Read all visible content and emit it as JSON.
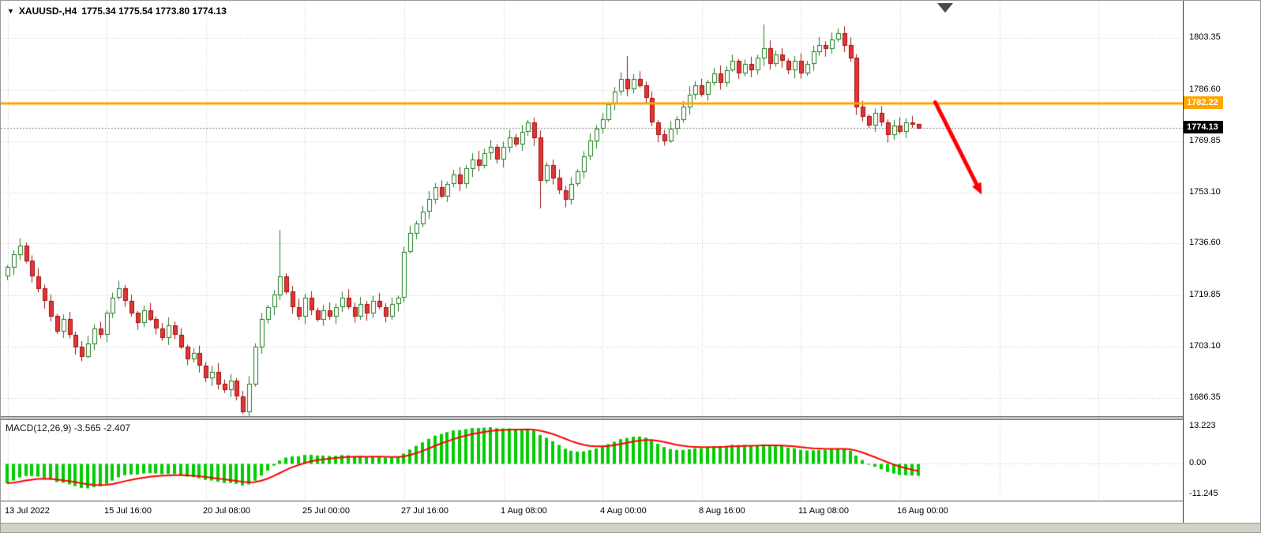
{
  "header": {
    "dropdown_icon": "▼",
    "symbol": "XAUUSD-,H4",
    "ohlc": "1775.34 1775.54 1773.80 1774.13"
  },
  "colors": {
    "background": "#ffffff",
    "grid": "#c6c6c6",
    "bull_border": "#1e7d1e",
    "bull_fill": "#ffffff",
    "bear_border": "#a01010",
    "bear_fill": "#e23535",
    "hline": "#ffa500",
    "hline_tag_bg": "#ffa500",
    "price_tag_bg": "#000000",
    "current_price_line": "#8a8a8a",
    "macd_hist": "#00cd00",
    "macd_signal": "#ff0000",
    "arrow": "#ff0000"
  },
  "chart_data": {
    "type": "candlestick",
    "symbol": "XAUUSD-",
    "timeframe": "H4",
    "title": "XAUUSD-,H4 1775.34 1775.54 1773.80 1774.13",
    "grid": "dotted",
    "price_range": {
      "min": 1680.5,
      "max": 1815.5
    },
    "y_axis": {
      "items": [
        {
          "value": 1803.35,
          "label": "1803.35"
        },
        {
          "value": 1786.6,
          "label": "1786.60"
        },
        {
          "value": 1769.85,
          "label": "1769.85"
        },
        {
          "value": 1753.1,
          "label": "1753.10"
        },
        {
          "value": 1736.6,
          "label": "1736.60"
        },
        {
          "value": 1719.85,
          "label": "1719.85"
        },
        {
          "value": 1703.1,
          "label": "1703.10"
        },
        {
          "value": 1686.35,
          "label": "1686.35"
        }
      ]
    },
    "x_labels": [
      {
        "bar": 0,
        "label": "13 Jul 2022"
      },
      {
        "bar": 16,
        "label": "15 Jul 16:00"
      },
      {
        "bar": 32,
        "label": "20 Jul 08:00"
      },
      {
        "bar": 48,
        "label": "25 Jul 00:00"
      },
      {
        "bar": 64,
        "label": "27 Jul 16:00"
      },
      {
        "bar": 80,
        "label": "1 Aug 08:00"
      },
      {
        "bar": 96,
        "label": "4 Aug 00:00"
      },
      {
        "bar": 112,
        "label": "8 Aug 16:00"
      },
      {
        "bar": 128,
        "label": "11 Aug 08:00"
      },
      {
        "bar": 144,
        "label": "16 Aug 00:00"
      }
    ],
    "grid_v_every_bars": 16,
    "hline": {
      "value": 1782.22,
      "label": "1782.22"
    },
    "price_line": {
      "value": 1774.13,
      "label": "1774.13"
    },
    "trend_arrow": {
      "from": {
        "bar": 150,
        "price": 1782.5
      },
      "to": {
        "bar": 157.5,
        "price": 1752.5
      }
    },
    "candles": {
      "open_rule": "previous_close",
      "first_open": 1726,
      "closes": [
        1729,
        1733,
        1736,
        1731,
        1726,
        1722,
        1718,
        1713,
        1708,
        1712,
        1707,
        1703,
        1700,
        1704,
        1709,
        1707,
        1714,
        1719,
        1722,
        1718,
        1714,
        1711,
        1715,
        1712,
        1709,
        1706,
        1710,
        1707,
        1703,
        1699,
        1701,
        1697,
        1693,
        1695,
        1691,
        1689,
        1692,
        1687,
        1682,
        1691,
        1703,
        1712,
        1716,
        1720,
        1726,
        1721,
        1716,
        1713,
        1719,
        1715,
        1712,
        1715,
        1713,
        1716,
        1719,
        1716,
        1713,
        1717,
        1714,
        1718,
        1716,
        1713,
        1717,
        1719,
        1734,
        1740,
        1743,
        1747,
        1751,
        1755,
        1752,
        1756,
        1759,
        1756,
        1761,
        1764,
        1762,
        1766,
        1768,
        1764,
        1768,
        1771,
        1769,
        1773,
        1776,
        1771,
        1757,
        1762,
        1758,
        1754,
        1751,
        1756,
        1760,
        1765,
        1770,
        1774,
        1777,
        1782,
        1786,
        1790,
        1787,
        1790,
        1788,
        1784,
        1776,
        1772,
        1770,
        1774,
        1777,
        1781,
        1785,
        1788,
        1785,
        1789,
        1792,
        1789,
        1793,
        1796,
        1792,
        1795,
        1793,
        1797,
        1800,
        1795,
        1798,
        1796,
        1793,
        1796,
        1792,
        1795,
        1799,
        1801,
        1800,
        1803,
        1805,
        1801,
        1797,
        1781,
        1778,
        1775,
        1779,
        1776,
        1772,
        1775,
        1773,
        1776,
        1775.34,
        1774.13
      ],
      "special_highs": {
        "44": 1741.0,
        "100": 1797.5,
        "122": 1807.8,
        "134": 1806.5,
        "135": 1807.2,
        "147": 1775.54
      },
      "special_lows": {
        "38": 1681.2,
        "86": 1748.0,
        "147": 1773.8
      }
    },
    "macd": {
      "fast": 12,
      "slow": 26,
      "signal": 9,
      "label": "MACD(12,26,9) -3.565 -2.407",
      "main_value": -3.565,
      "signal_value": -2.407,
      "ema_fast_seed": 1727,
      "ema_slow_seed": 1735,
      "render_range": {
        "min": -13.5,
        "max": 15.5
      },
      "axis_items": [
        {
          "value": 13.223,
          "label": "13.223"
        },
        {
          "value": 0,
          "label": "0.00"
        },
        {
          "value": -11.245,
          "label": "-11.245"
        }
      ]
    }
  }
}
